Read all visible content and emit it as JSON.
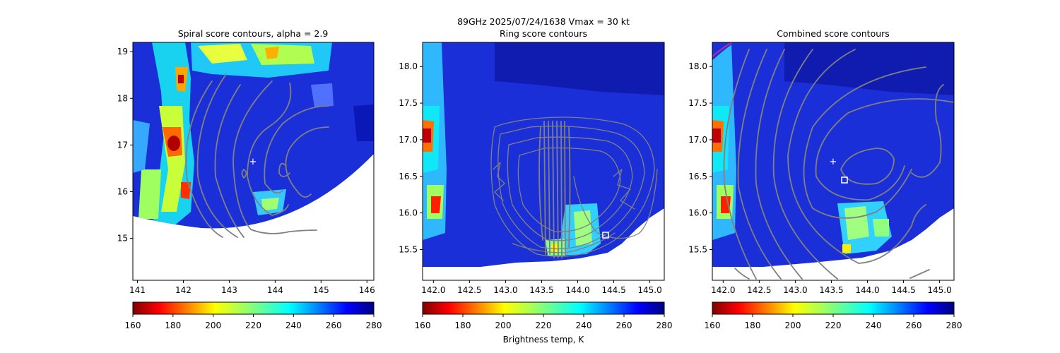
{
  "figure": {
    "suptitle_line1": "89GHz  2025/07/24/1638    Vmax = 30 kt",
    "colorbar_label": "Brightness temp, K"
  },
  "chart_data": [
    {
      "type": "heatmap",
      "title": "Spiral score contours, alpha =  2.9",
      "xlabel": "",
      "ylabel": "",
      "xlim": [
        140.9,
        146.15
      ],
      "ylim": [
        14.1,
        19.2
      ],
      "xticks": [
        141,
        142,
        143,
        144,
        145,
        146
      ],
      "yticks": [
        15,
        16,
        17,
        18,
        19
      ],
      "center_marker": {
        "symbol": "+",
        "x": 143.5,
        "y": 16.7
      },
      "colorbar": {
        "colormap": "jet_reversed",
        "min": 160,
        "max": 280,
        "ticks": [
          160,
          180,
          200,
          220,
          240,
          260,
          280
        ]
      }
    },
    {
      "type": "heatmap",
      "title": "Ring score contours",
      "xlabel": "",
      "ylabel": "",
      "xlim": [
        141.85,
        145.2
      ],
      "ylim": [
        15.08,
        18.33
      ],
      "xticks": [
        142.0,
        142.5,
        143.0,
        143.5,
        144.0,
        144.5,
        145.0
      ],
      "yticks": [
        15.5,
        16.0,
        16.5,
        17.0,
        17.5,
        18.0
      ],
      "square_marker": {
        "symbol": "square",
        "x": 144.37,
        "y": 15.71
      },
      "colorbar": {
        "colormap": "jet_reversed",
        "min": 160,
        "max": 280,
        "ticks": [
          160,
          180,
          200,
          220,
          240,
          260,
          280
        ]
      }
    },
    {
      "type": "heatmap",
      "title": "Combined score contours",
      "xlabel": "",
      "ylabel": "",
      "xlim": [
        141.85,
        145.2
      ],
      "ylim": [
        15.08,
        18.33
      ],
      "xticks": [
        142.0,
        142.5,
        143.0,
        143.5,
        144.0,
        144.5,
        145.0
      ],
      "yticks": [
        15.5,
        16.0,
        16.5,
        17.0,
        17.5,
        18.0
      ],
      "center_marker": {
        "symbol": "+",
        "x": 143.5,
        "y": 16.7
      },
      "square_marker": {
        "symbol": "square",
        "x": 143.65,
        "y": 16.44
      },
      "colorbar": {
        "colormap": "jet_reversed",
        "min": 160,
        "max": 280,
        "ticks": [
          160,
          180,
          200,
          220,
          240,
          260,
          280
        ]
      }
    }
  ]
}
